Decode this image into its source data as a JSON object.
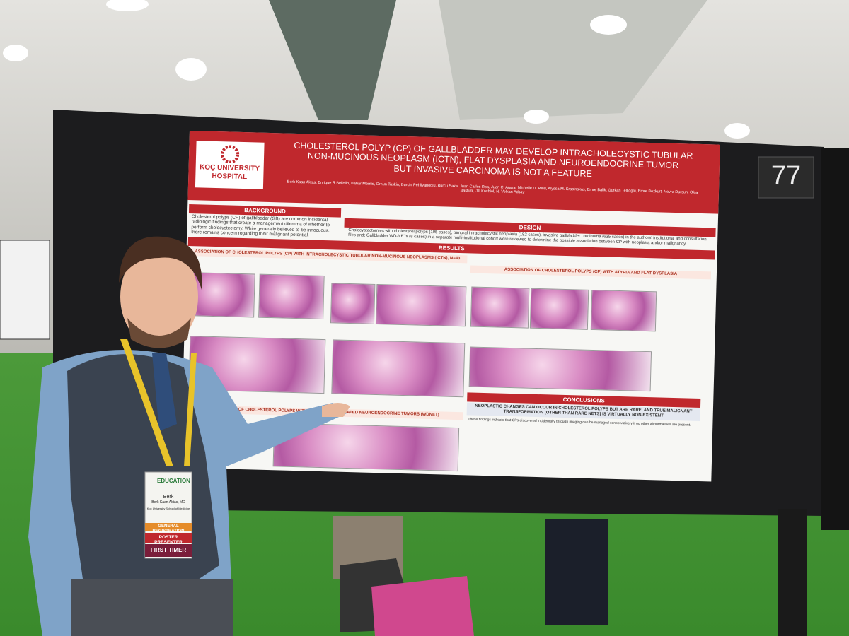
{
  "board_number": "77",
  "poster": {
    "logo": "KOÇ UNIVERSITY HOSPITAL",
    "title_lines": [
      "CHOLESTEROL POLYP (CP) OF GALLBLADDER MAY DEVELOP INTRACHOLECYSTIC TUBULAR",
      "NON-MUCINOUS NEOPLASM (ICTN), FLAT DYSPLASIA AND NEUROENDOCRINE TUMOR",
      "BUT INVASIVE CARCINOMA IS NOT A FEATURE"
    ],
    "authors": "Berk Kaan Aktas, Enrique R Bellolio, Bahar Memis, Orhun Taskin, Burcin Pehlivanoglu, Burcu Saka, Juan Carlos Roa, Juan C. Araya, Michelle D. Reid, Alyssa M. Krasinskas, Emre Balik, Gurkan Tellioglu, Emre Bozkurt, Nevra Dursun, Olca Basturk, Jill Koshiol, N. Volkan Adsay",
    "background": {
      "header": "BACKGROUND",
      "text": "Cholesterol polyps (CP) of gallbladder (GB) are common incidental radiologic findings that create a management dilemma of whether to perform cholecystectomy. While generally believed to be innocuous, there remains concern regarding their malignant potential."
    },
    "design": {
      "header": "DESIGN",
      "text": "Cholecystectomies with cholesterol polyps (195 cases), tumoral intracholecystic neoplasia (182 cases), invasive gallbladder carcinoma (635 cases) in the authors' institutional and consultation files and; Gallbladder WD-NETs (8 cases) in a separate multi-institutional cohort were reviewed to determine the possible association between CP with neoplasia and/or malignancy."
    },
    "results": {
      "header": "RESULTS",
      "left_header": "ASSOCIATION OF CHOLESTEROL POLYPS (CP) WITH INTRACHOLECYSTIC TUBULAR NON-MUCINOUS NEOPLASMS (ICTN), N=43",
      "right_header": "ASSOCIATION OF CHOLESTEROL POLYPS (CP) WITH ATYPIA AND FLAT DYSPLASIA",
      "bottom_header": "ASSOCIATION OF CHOLESTEROL POLYPS WITH WELL-DIFFERENTIATED NEUROENDOCRINE TUMORS (WDNET)"
    },
    "conclusions": {
      "header": "CONCLUSIONS",
      "summary": "NEOPLASTIC CHANGES CAN OCCUR IN CHOLESTEROL POLYPS BUT ARE RARE, AND TRUE MALIGNANT TRANSFORMATION (OTHER THAN RARE NETS) IS VIRTUALLY NON-EXISTENT",
      "text": "These findings indicate that CPs discovered incidentally through imaging can be managed conservatively if no other abnormalities are present."
    }
  },
  "badge": {
    "event": "EDUCATION",
    "first_name": "Berk",
    "full_name": "Berk Kaan Aktas, MD",
    "school": "Koc University School of Medicine",
    "registration": "GENERAL REGISTRATION",
    "role": "POSTER PRESENTER",
    "tag": "FIRST TIMER"
  }
}
